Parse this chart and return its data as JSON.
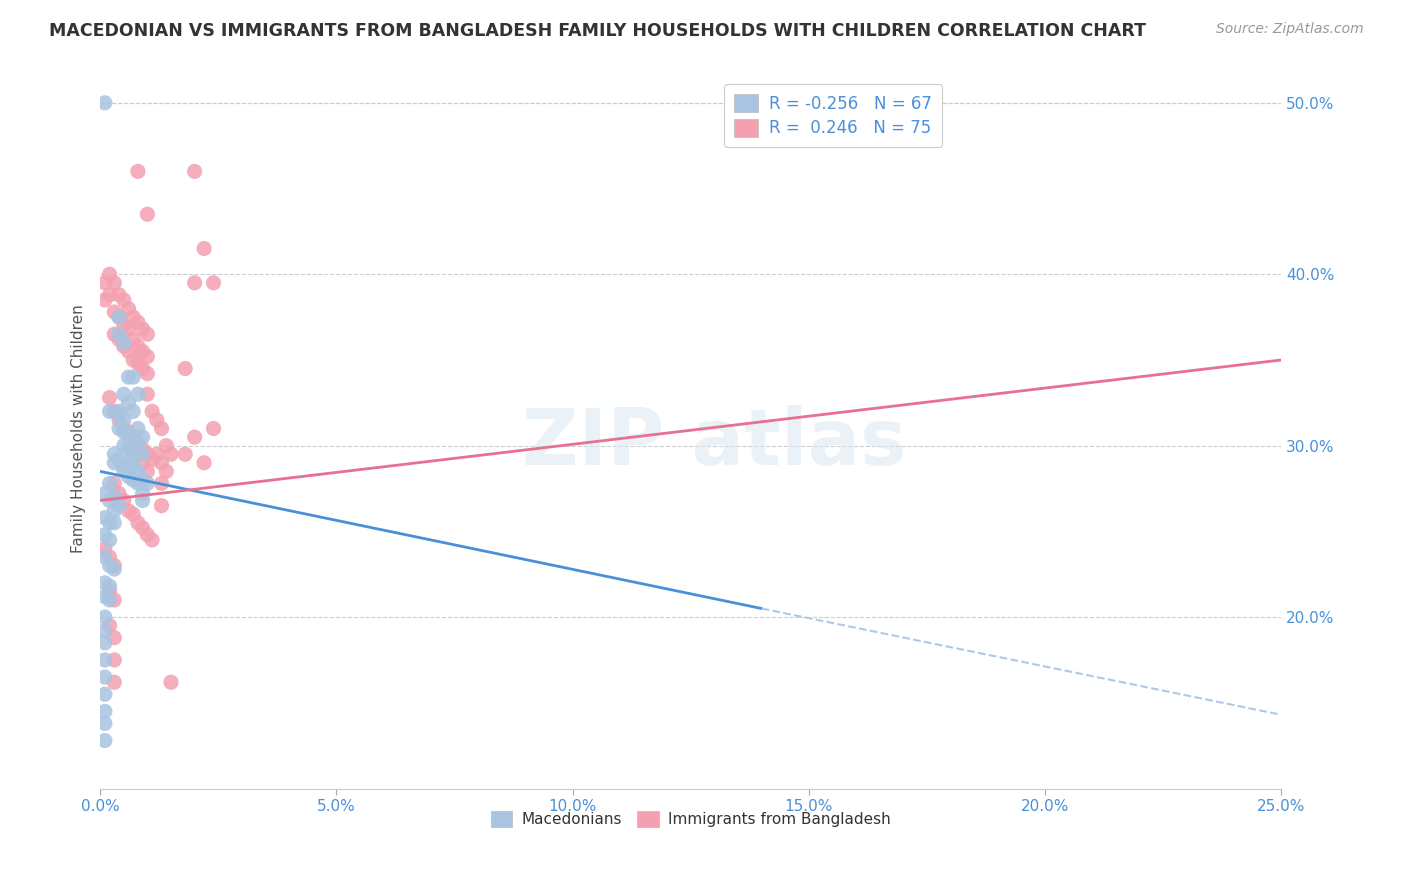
{
  "title": "MACEDONIAN VS IMMIGRANTS FROM BANGLADESH FAMILY HOUSEHOLDS WITH CHILDREN CORRELATION CHART",
  "source": "Source: ZipAtlas.com",
  "ylabel": "Family Households with Children",
  "xlim": [
    0.0,
    0.25
  ],
  "ylim": [
    0.1,
    0.52
  ],
  "xticklabels": [
    "0.0%",
    "5.0%",
    "10.0%",
    "15.0%",
    "20.0%",
    "25.0%"
  ],
  "xticks": [
    0.0,
    0.05,
    0.1,
    0.15,
    0.2,
    0.25
  ],
  "yticklabels_right": [
    "20.0%",
    "30.0%",
    "40.0%",
    "50.0%"
  ],
  "yticks": [
    0.2,
    0.3,
    0.4,
    0.5
  ],
  "macedonian_color": "#a8c4e0",
  "bangladesh_color": "#f4a0b0",
  "trendline_mac_color": "#4a90d9",
  "trendline_ban_color": "#e87090",
  "trendline_ext_color": "#b0c8e8",
  "mac_trend_x0": 0.0,
  "mac_trend_y0": 0.285,
  "mac_trend_x1": 0.14,
  "mac_trend_y1": 0.205,
  "mac_trend_x2": 0.25,
  "mac_trend_y2": 0.143,
  "ban_trend_x0": 0.0,
  "ban_trend_y0": 0.268,
  "ban_trend_x1": 0.25,
  "ban_trend_y1": 0.35,
  "macedonian_scatter": [
    [
      0.001,
      0.5
    ],
    [
      0.004,
      0.375
    ],
    [
      0.004,
      0.365
    ],
    [
      0.005,
      0.36
    ],
    [
      0.002,
      0.32
    ],
    [
      0.004,
      0.32
    ],
    [
      0.004,
      0.318
    ],
    [
      0.005,
      0.315
    ],
    [
      0.006,
      0.34
    ],
    [
      0.005,
      0.33
    ],
    [
      0.006,
      0.325
    ],
    [
      0.007,
      0.34
    ],
    [
      0.007,
      0.32
    ],
    [
      0.008,
      0.33
    ],
    [
      0.004,
      0.31
    ],
    [
      0.005,
      0.308
    ],
    [
      0.006,
      0.305
    ],
    [
      0.005,
      0.3
    ],
    [
      0.006,
      0.298
    ],
    [
      0.007,
      0.305
    ],
    [
      0.007,
      0.295
    ],
    [
      0.008,
      0.31
    ],
    [
      0.008,
      0.3
    ],
    [
      0.009,
      0.305
    ],
    [
      0.009,
      0.295
    ],
    [
      0.003,
      0.295
    ],
    [
      0.003,
      0.29
    ],
    [
      0.004,
      0.292
    ],
    [
      0.005,
      0.288
    ],
    [
      0.005,
      0.285
    ],
    [
      0.006,
      0.29
    ],
    [
      0.006,
      0.282
    ],
    [
      0.007,
      0.288
    ],
    [
      0.007,
      0.28
    ],
    [
      0.008,
      0.285
    ],
    [
      0.008,
      0.278
    ],
    [
      0.009,
      0.28
    ],
    [
      0.009,
      0.272
    ],
    [
      0.01,
      0.278
    ],
    [
      0.002,
      0.278
    ],
    [
      0.001,
      0.272
    ],
    [
      0.002,
      0.268
    ],
    [
      0.003,
      0.27
    ],
    [
      0.003,
      0.262
    ],
    [
      0.004,
      0.265
    ],
    [
      0.001,
      0.258
    ],
    [
      0.002,
      0.255
    ],
    [
      0.003,
      0.255
    ],
    [
      0.001,
      0.248
    ],
    [
      0.002,
      0.245
    ],
    [
      0.001,
      0.235
    ],
    [
      0.002,
      0.23
    ],
    [
      0.003,
      0.228
    ],
    [
      0.001,
      0.22
    ],
    [
      0.002,
      0.218
    ],
    [
      0.001,
      0.212
    ],
    [
      0.002,
      0.21
    ],
    [
      0.001,
      0.2
    ],
    [
      0.001,
      0.192
    ],
    [
      0.001,
      0.185
    ],
    [
      0.001,
      0.175
    ],
    [
      0.001,
      0.165
    ],
    [
      0.001,
      0.155
    ],
    [
      0.001,
      0.145
    ],
    [
      0.001,
      0.138
    ],
    [
      0.001,
      0.128
    ],
    [
      0.009,
      0.268
    ]
  ],
  "bangladesh_scatter": [
    [
      0.001,
      0.395
    ],
    [
      0.001,
      0.385
    ],
    [
      0.002,
      0.4
    ],
    [
      0.002,
      0.388
    ],
    [
      0.003,
      0.395
    ],
    [
      0.003,
      0.378
    ],
    [
      0.003,
      0.365
    ],
    [
      0.004,
      0.388
    ],
    [
      0.004,
      0.375
    ],
    [
      0.004,
      0.362
    ],
    [
      0.005,
      0.385
    ],
    [
      0.005,
      0.37
    ],
    [
      0.005,
      0.358
    ],
    [
      0.006,
      0.38
    ],
    [
      0.006,
      0.368
    ],
    [
      0.006,
      0.355
    ],
    [
      0.007,
      0.375
    ],
    [
      0.007,
      0.362
    ],
    [
      0.007,
      0.35
    ],
    [
      0.008,
      0.372
    ],
    [
      0.008,
      0.358
    ],
    [
      0.008,
      0.348
    ],
    [
      0.009,
      0.368
    ],
    [
      0.009,
      0.355
    ],
    [
      0.009,
      0.345
    ],
    [
      0.01,
      0.365
    ],
    [
      0.01,
      0.352
    ],
    [
      0.01,
      0.342
    ],
    [
      0.002,
      0.328
    ],
    [
      0.003,
      0.32
    ],
    [
      0.004,
      0.315
    ],
    [
      0.005,
      0.31
    ],
    [
      0.006,
      0.308
    ],
    [
      0.007,
      0.305
    ],
    [
      0.007,
      0.298
    ],
    [
      0.008,
      0.302
    ],
    [
      0.008,
      0.295
    ],
    [
      0.009,
      0.298
    ],
    [
      0.009,
      0.29
    ],
    [
      0.01,
      0.295
    ],
    [
      0.01,
      0.285
    ],
    [
      0.011,
      0.292
    ],
    [
      0.003,
      0.278
    ],
    [
      0.004,
      0.272
    ],
    [
      0.005,
      0.268
    ],
    [
      0.006,
      0.262
    ],
    [
      0.007,
      0.26
    ],
    [
      0.008,
      0.255
    ],
    [
      0.009,
      0.252
    ],
    [
      0.01,
      0.248
    ],
    [
      0.011,
      0.245
    ],
    [
      0.001,
      0.24
    ],
    [
      0.002,
      0.235
    ],
    [
      0.003,
      0.23
    ],
    [
      0.002,
      0.215
    ],
    [
      0.003,
      0.21
    ],
    [
      0.002,
      0.195
    ],
    [
      0.003,
      0.188
    ],
    [
      0.003,
      0.175
    ],
    [
      0.003,
      0.162
    ],
    [
      0.008,
      0.46
    ],
    [
      0.01,
      0.435
    ],
    [
      0.01,
      0.33
    ],
    [
      0.011,
      0.32
    ],
    [
      0.012,
      0.315
    ],
    [
      0.013,
      0.31
    ],
    [
      0.012,
      0.295
    ],
    [
      0.013,
      0.29
    ],
    [
      0.013,
      0.278
    ],
    [
      0.013,
      0.265
    ],
    [
      0.014,
      0.3
    ],
    [
      0.014,
      0.285
    ],
    [
      0.015,
      0.295
    ],
    [
      0.015,
      0.162
    ],
    [
      0.018,
      0.345
    ],
    [
      0.018,
      0.295
    ],
    [
      0.02,
      0.46
    ],
    [
      0.02,
      0.395
    ],
    [
      0.02,
      0.305
    ],
    [
      0.022,
      0.415
    ],
    [
      0.022,
      0.29
    ],
    [
      0.024,
      0.395
    ],
    [
      0.024,
      0.31
    ]
  ]
}
